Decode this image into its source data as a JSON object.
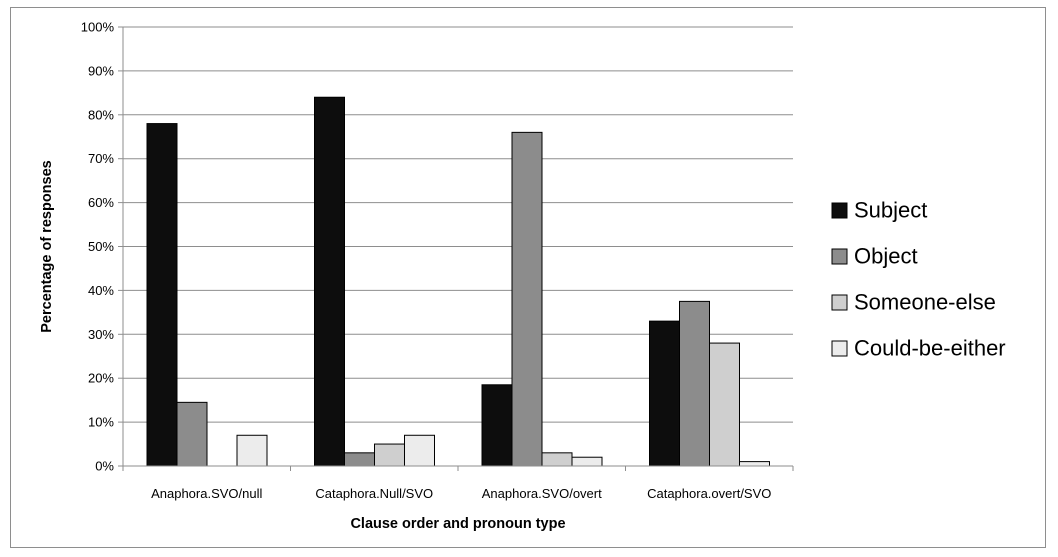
{
  "chart_data": {
    "type": "bar",
    "categories": [
      "Anaphora.SVO/null",
      "Cataphora.Null/SVO",
      "Anaphora.SVO/overt",
      "Cataphora.overt/SVO"
    ],
    "series": [
      {
        "name": "Subject",
        "color": "#0d0d0d",
        "values": [
          78,
          84,
          18.5,
          33
        ]
      },
      {
        "name": "Object",
        "color": "#8c8c8c",
        "values": [
          14.5,
          3,
          76,
          37.5
        ]
      },
      {
        "name": "Someone-else",
        "color": "#cfcfcf",
        "values": [
          0,
          5,
          3,
          28
        ]
      },
      {
        "name": "Could-be-either",
        "color": "#ececec",
        "values": [
          7,
          7,
          2,
          1
        ]
      }
    ],
    "title": "",
    "xlabel": "Clause order and pronoun type",
    "ylabel": "Percentage of responses",
    "ylim": [
      0,
      100
    ],
    "yticks": [
      "0%",
      "10%",
      "20%",
      "30%",
      "40%",
      "50%",
      "60%",
      "70%",
      "80%",
      "90%",
      "100%"
    ],
    "grid": true,
    "legend_position": "right"
  }
}
